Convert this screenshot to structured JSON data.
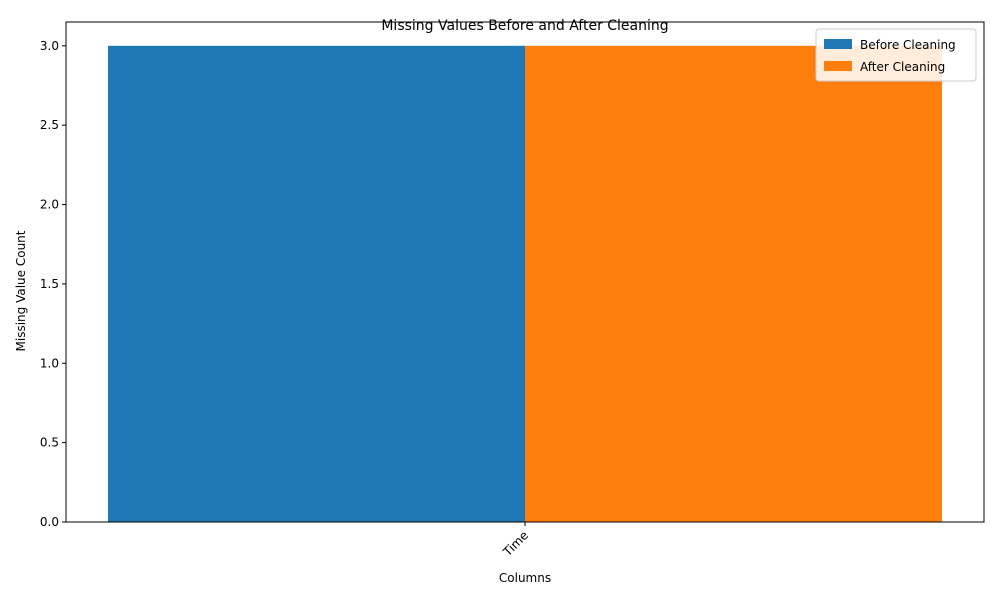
{
  "chart_data": {
    "type": "bar",
    "title": "Missing Values Before and After Cleaning",
    "xlabel": "Columns",
    "ylabel": "Missing Value Count",
    "categories": [
      "Time"
    ],
    "series": [
      {
        "name": "Before Cleaning",
        "values": [
          3
        ],
        "color": "#1f77b4"
      },
      {
        "name": "After Cleaning",
        "values": [
          3
        ],
        "color": "#ff7f0e"
      }
    ],
    "ylim": [
      0,
      3.15
    ],
    "yticks": [
      "0.0",
      "0.5",
      "1.0",
      "1.5",
      "2.0",
      "2.5",
      "3.0"
    ],
    "legend_position": "top-right",
    "grid": false
  }
}
